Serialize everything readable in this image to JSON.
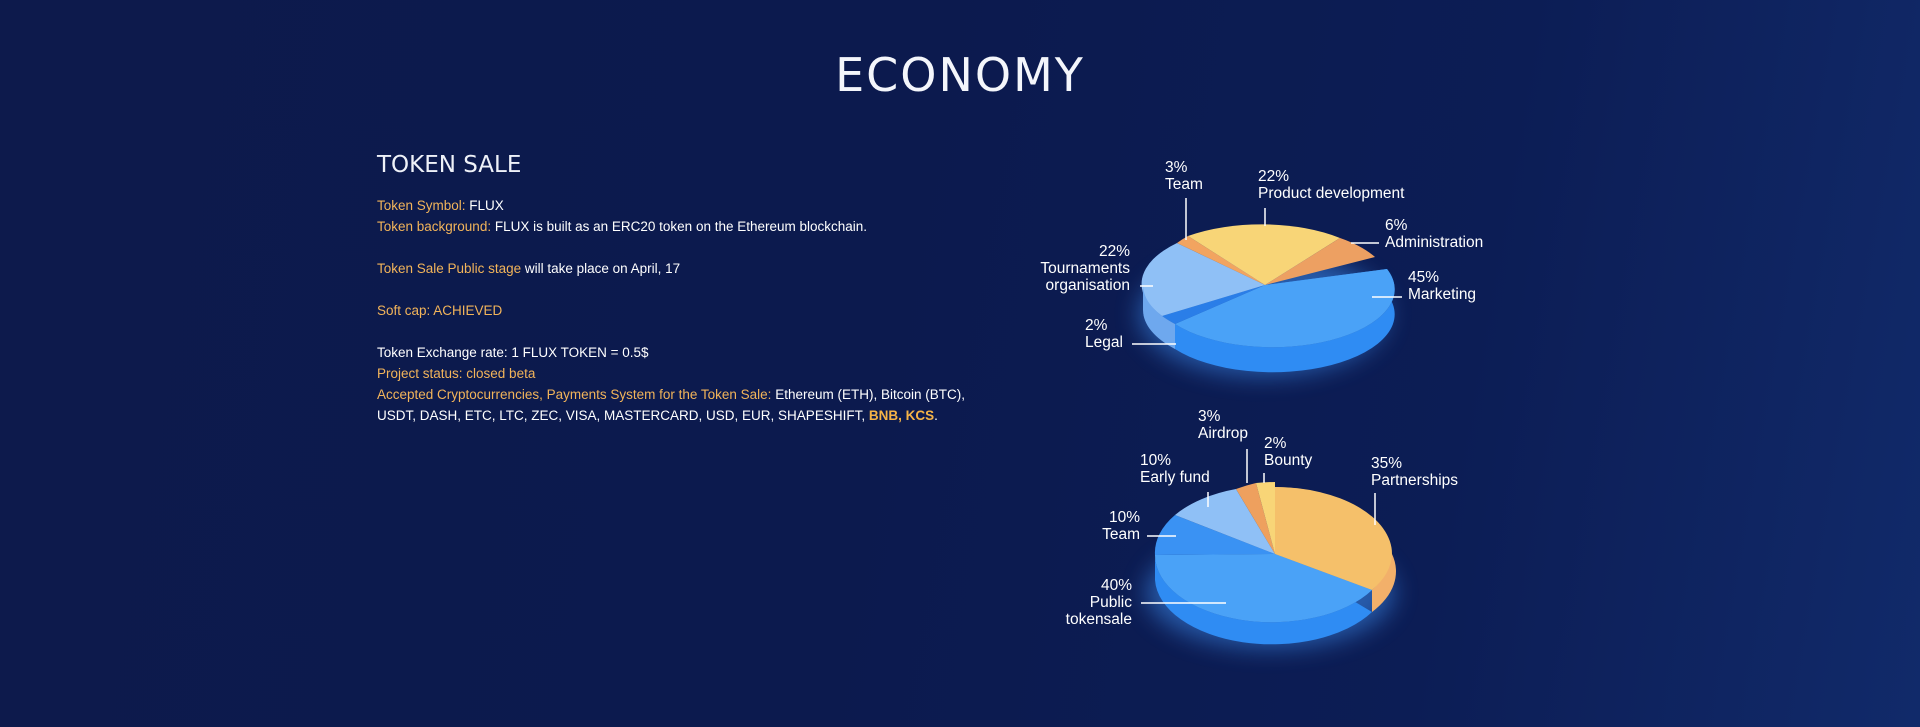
{
  "page_title": "ECONOMY",
  "token_sale": {
    "title": "TOKEN SALE",
    "symbol_label": "Token Symbol: ",
    "symbol_value": "FLUX",
    "background_label": "Token background: ",
    "background_value": "FLUX is built as an ERC20 token on the Ethereum blockchain.",
    "public_stage_label": "Token Sale Public stage",
    "public_stage_value": " will take place on April, 17",
    "soft_cap": "Soft cap: ACHIEVED",
    "exchange_rate": "Token Exchange rate: 1 FLUX TOKEN = 0.5$",
    "project_status": "Project status: closed beta",
    "accepted_label": "Accepted Cryptocurrencies, Payments System for the Token Sale: ",
    "accepted_value": "Ethereum (ETH), Bitcoin (BTC), USDT, DASH, ETC, LTC, ZEC, VISA, MASTERCARD, USD, EUR, SHAPESHIFT, ",
    "accepted_highlight": "BNB, KCS",
    "accepted_end": "."
  },
  "colors": {
    "orange": "#f2a560",
    "orange_dark": "#d98542",
    "yellow": "#f7d374",
    "yellow_dark": "#d8a24a",
    "blue_light": "#8fbff5",
    "blue_light_dark": "#5a92e2",
    "blue": "#3f97f5",
    "blue_dark": "#1d63d6",
    "label_text": "#ffffff"
  },
  "chart_data": [
    {
      "type": "pie",
      "slices": [
        {
          "label": "Marketing",
          "value": 45
        },
        {
          "label": "Legal",
          "value": 2
        },
        {
          "label": "Tournaments organisation",
          "value": 22
        },
        {
          "label": "Team",
          "value": 3
        },
        {
          "label": "Product development",
          "value": 22
        },
        {
          "label": "Administration",
          "value": 6
        }
      ],
      "labels": [
        {
          "pct": "45%",
          "name": "Marketing"
        },
        {
          "pct": "2%",
          "name": "Legal"
        },
        {
          "pct": "22%",
          "name": "Tournaments",
          "name2": "organisation"
        },
        {
          "pct": "3%",
          "name": "Team"
        },
        {
          "pct": "22%",
          "name": "Product development"
        },
        {
          "pct": "6%",
          "name": "Administration"
        }
      ]
    },
    {
      "type": "pie",
      "slices": [
        {
          "label": "Partnerships",
          "value": 35
        },
        {
          "label": "Public tokensale",
          "value": 40
        },
        {
          "label": "Team",
          "value": 10
        },
        {
          "label": "Early fund",
          "value": 10
        },
        {
          "label": "Airdrop",
          "value": 3
        },
        {
          "label": "Bounty",
          "value": 2
        }
      ],
      "labels": [
        {
          "pct": "35%",
          "name": "Partnerships"
        },
        {
          "pct": "40%",
          "name": "Public",
          "name2": "tokensale"
        },
        {
          "pct": "10%",
          "name": "Team"
        },
        {
          "pct": "10%",
          "name": "Early fund"
        },
        {
          "pct": "3%",
          "name": "Airdrop"
        },
        {
          "pct": "2%",
          "name": "Bounty"
        }
      ]
    }
  ]
}
